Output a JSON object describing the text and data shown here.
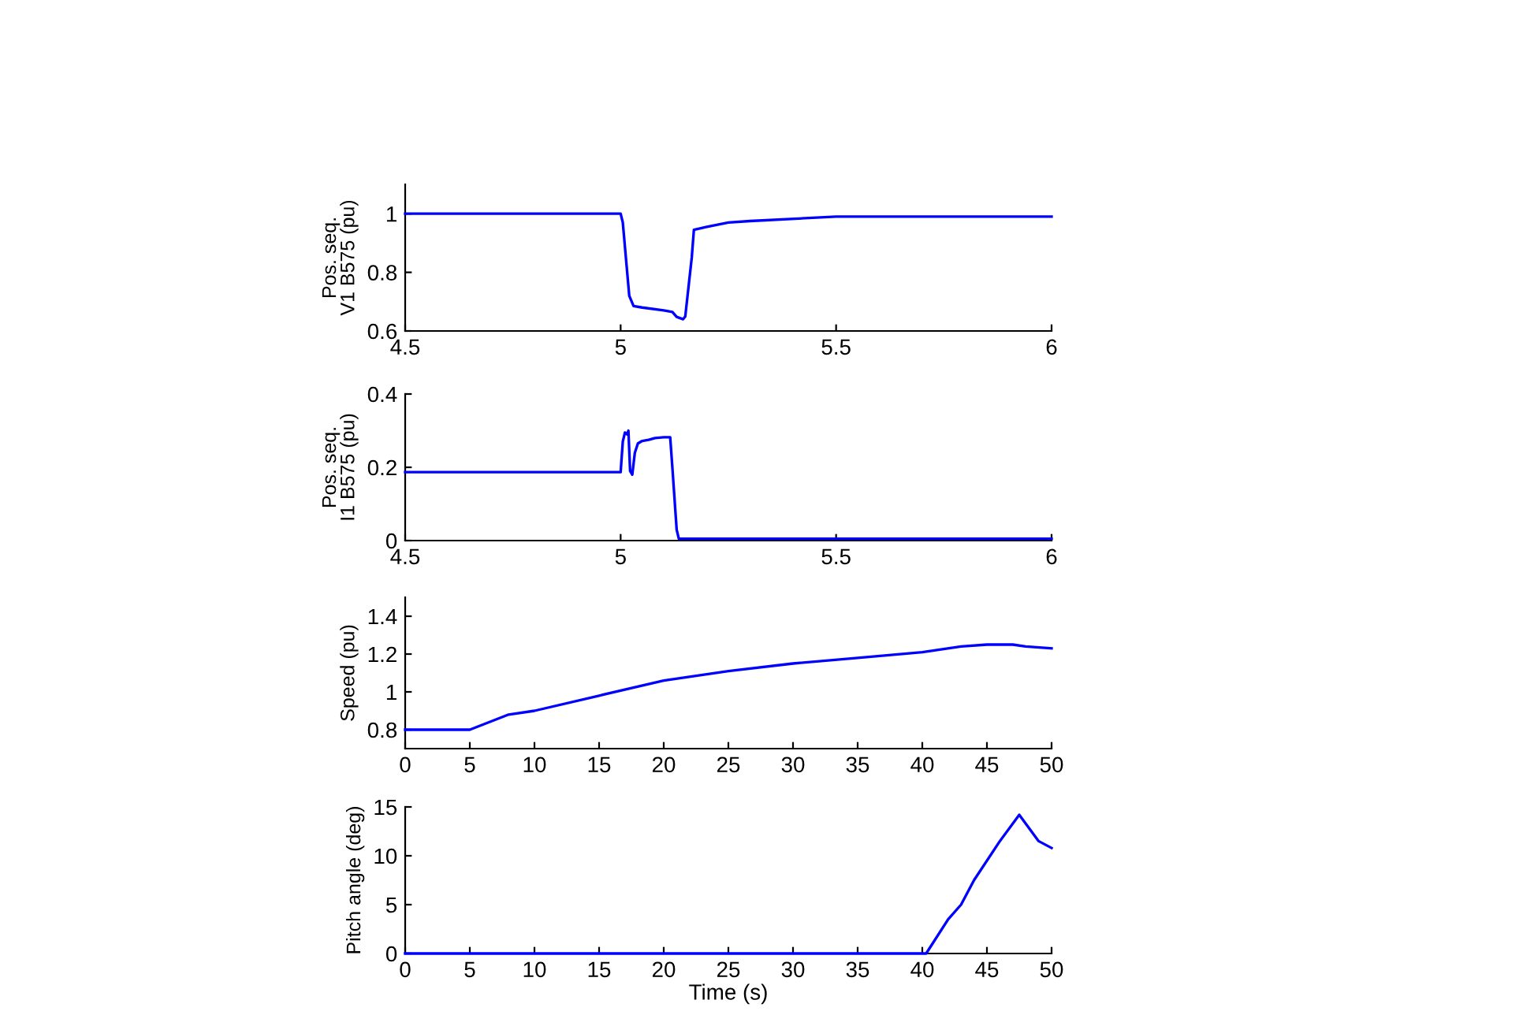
{
  "chart_data": [
    {
      "type": "line",
      "ylabel": "Pos. seq.\nV1 B575 (pu)",
      "xlim": [
        4.5,
        6
      ],
      "xticks": [
        4.5,
        5,
        5.5,
        6
      ],
      "ylim": [
        0.6,
        1.1
      ],
      "yticks": [
        0.6,
        0.8,
        1
      ],
      "grid": false,
      "series": [
        {
          "color": "#0000ff",
          "x": [
            4.5,
            5.0,
            5.005,
            5.02,
            5.03,
            5.05,
            5.1,
            5.12,
            5.13,
            5.145,
            5.15,
            5.165,
            5.17,
            5.2,
            5.25,
            5.3,
            5.5,
            6.0
          ],
          "values": [
            1.0,
            1.0,
            0.97,
            0.72,
            0.685,
            0.68,
            0.67,
            0.665,
            0.648,
            0.64,
            0.65,
            0.85,
            0.945,
            0.955,
            0.97,
            0.975,
            0.99,
            0.99
          ]
        }
      ]
    },
    {
      "type": "line",
      "ylabel": "Pos. seq.\nI1 B575 (pu)",
      "xlim": [
        4.5,
        6
      ],
      "xticks": [
        4.5,
        5,
        5.5,
        6
      ],
      "ylim": [
        0,
        0.4
      ],
      "yticks": [
        0,
        0.2,
        0.4
      ],
      "grid": false,
      "series": [
        {
          "color": "#0000ff",
          "x": [
            4.5,
            5.0,
            5.005,
            5.01,
            5.015,
            5.018,
            5.022,
            5.027,
            5.033,
            5.04,
            5.05,
            5.065,
            5.08,
            5.1,
            5.115,
            5.12,
            5.13,
            5.135,
            6.0
          ],
          "values": [
            0.187,
            0.187,
            0.27,
            0.295,
            0.29,
            0.3,
            0.19,
            0.18,
            0.24,
            0.265,
            0.272,
            0.275,
            0.28,
            0.282,
            0.282,
            0.2,
            0.03,
            0.005,
            0.005
          ]
        }
      ]
    },
    {
      "type": "line",
      "ylabel": "Speed (pu)",
      "xlim": [
        0,
        50
      ],
      "xticks": [
        0,
        5,
        10,
        15,
        20,
        25,
        30,
        35,
        40,
        45,
        50
      ],
      "ylim": [
        0.7,
        1.5
      ],
      "yticks": [
        0.8,
        1,
        1.2,
        1.4
      ],
      "grid": false,
      "series": [
        {
          "color": "#0000ff",
          "x": [
            0,
            5,
            8,
            10,
            15,
            20,
            25,
            30,
            35,
            40,
            43,
            45,
            47,
            48,
            50
          ],
          "values": [
            0.8,
            0.8,
            0.88,
            0.9,
            0.98,
            1.06,
            1.11,
            1.15,
            1.18,
            1.21,
            1.24,
            1.25,
            1.25,
            1.24,
            1.23
          ]
        }
      ]
    },
    {
      "type": "line",
      "xlabel": "Time (s)",
      "ylabel": "Pitch angle (deg)",
      "xlim": [
        0,
        50
      ],
      "xticks": [
        0,
        5,
        10,
        15,
        20,
        25,
        30,
        35,
        40,
        45,
        50
      ],
      "ylim": [
        0,
        15
      ],
      "yticks": [
        0,
        5,
        10,
        15
      ],
      "grid": false,
      "series": [
        {
          "color": "#0000ff",
          "x": [
            0,
            40.3,
            42,
            43,
            44,
            46,
            47.5,
            49,
            50
          ],
          "values": [
            0,
            0,
            3.5,
            5,
            7.5,
            11.5,
            14.2,
            11.5,
            10.8
          ]
        }
      ]
    }
  ]
}
